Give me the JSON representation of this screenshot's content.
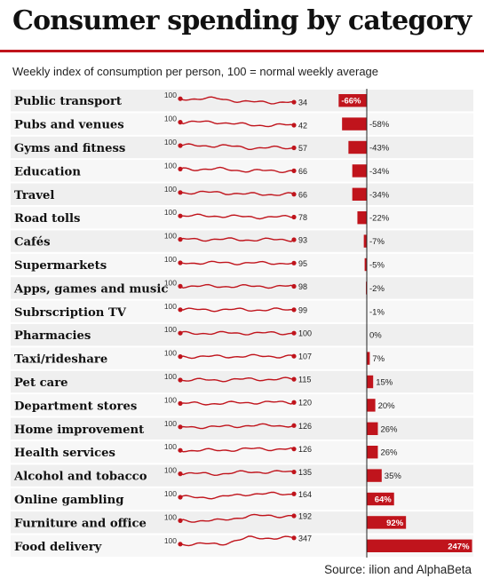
{
  "header": {
    "title": "Consumer spending by category",
    "subtitle": "Weekly index of consumption per person, 100 = normal weekly average"
  },
  "footer": {
    "source": "Source: ilion and AlphaBeta"
  },
  "colors": {
    "accent": "#c0141c",
    "band": "#efefef",
    "text": "#111111"
  },
  "chart_data": {
    "type": "bar",
    "title": "Consumer spending by category",
    "subtitle": "Weekly index of consumption per person, 100 = normal weekly average",
    "start_label": "100",
    "change_range": [
      -70,
      250
    ],
    "categories": [
      "Public transport",
      "Pubs and venues",
      "Gyms and fitness",
      "Education",
      "Travel",
      "Road tolls",
      "Cafés",
      "Supermarkets",
      "Apps, games and music",
      "Subrscription TV",
      "Pharmacies",
      "Taxi/rideshare",
      "Pet care",
      "Department stores",
      "Home improvement",
      "Health services",
      "Alcohol and tobacco",
      "Online gambling",
      "Furniture and office",
      "Food delivery"
    ],
    "series": [
      {
        "values": [
          34,
          42,
          57,
          66,
          66,
          78,
          93,
          95,
          98,
          99,
          100,
          107,
          115,
          120,
          126,
          126,
          135,
          164,
          192,
          347
        ]
      },
      {
        "values": [
          -66,
          -58,
          -43,
          -34,
          -34,
          -22,
          -7,
          -5,
          -2,
          -1,
          0,
          7,
          15,
          20,
          26,
          26,
          35,
          64,
          92,
          247
        ]
      }
    ],
    "change_labels": [
      "-66%",
      "-58%",
      "-43%",
      "-34%",
      "-34%",
      "-22%",
      "-7%",
      "-5%",
      "-2%",
      "-1%",
      "0%",
      "7%",
      "15%",
      "20%",
      "26%",
      "26%",
      "35%",
      "64%",
      "92%",
      "247%"
    ]
  }
}
